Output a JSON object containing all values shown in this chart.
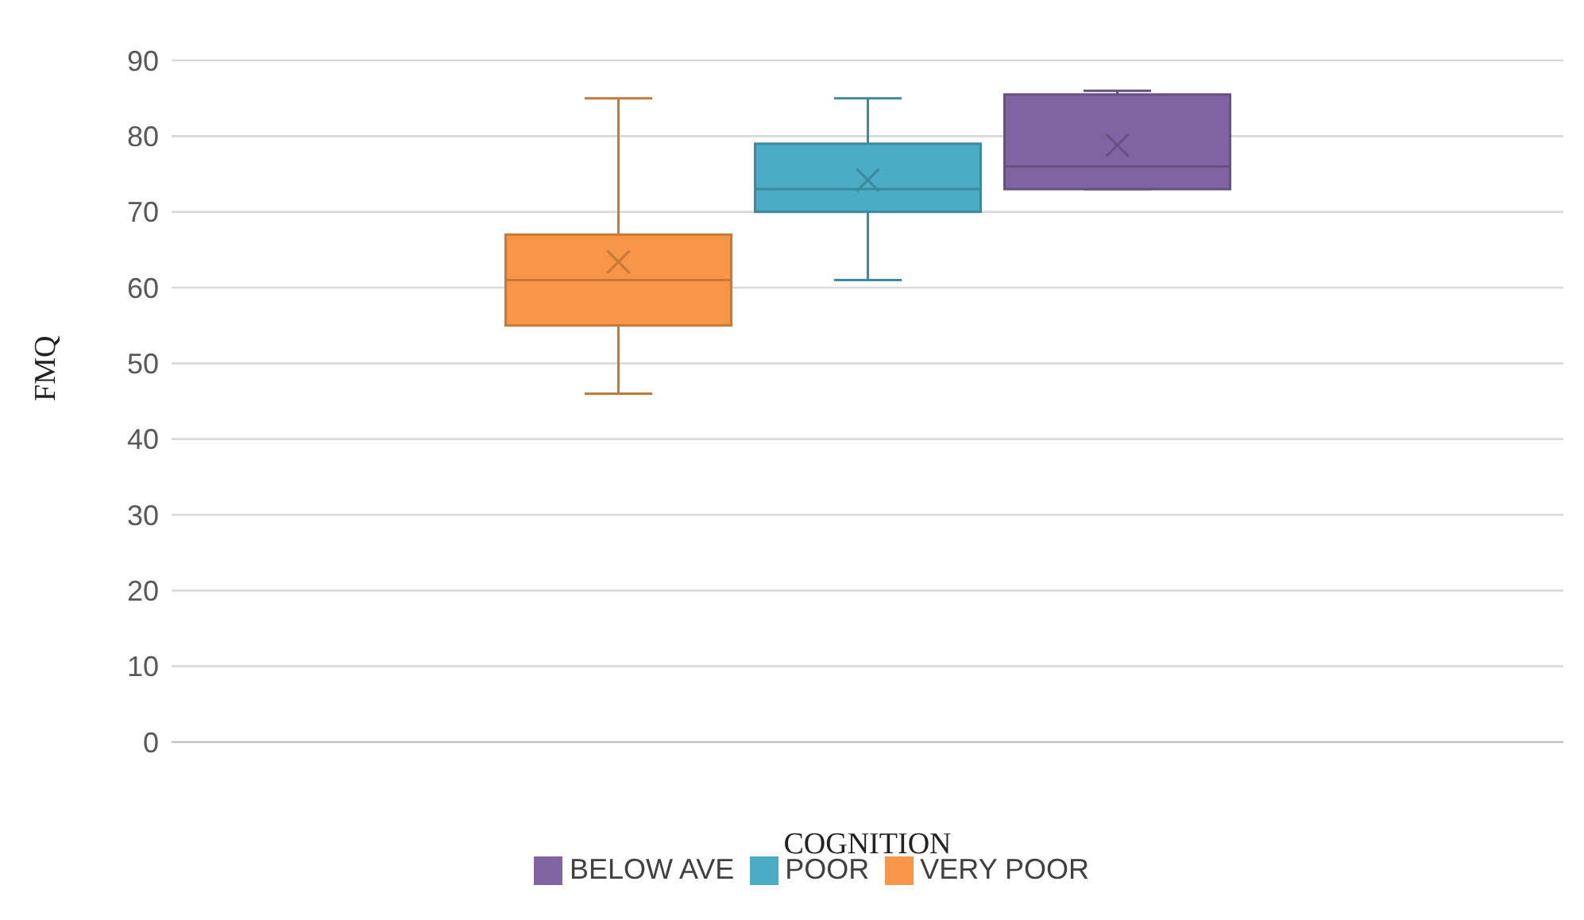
{
  "chart_data": {
    "type": "box",
    "xlabel": "COGNITION",
    "ylabel": "FMQ",
    "categories": [
      null
    ],
    "series": [
      {
        "name": "VERY POOR",
        "color": "#f79646",
        "boxes": [
          {
            "low": 46,
            "q1": 55,
            "median": 61,
            "q3": 67,
            "high": 85,
            "mean": 63.4
          }
        ]
      },
      {
        "name": "POOR",
        "color": "#4bacc6",
        "boxes": [
          {
            "low": 61,
            "q1": 70,
            "median": 73,
            "q3": 79,
            "high": 85,
            "mean": 74.2
          }
        ]
      },
      {
        "name": "BELOW AVE",
        "color": "#8064a2",
        "boxes": [
          {
            "low": 73,
            "q1": 73,
            "median": 76,
            "q3": 85.5,
            "high": 86,
            "mean": 78.8
          }
        ]
      }
    ],
    "ylim": [
      0,
      90
    ],
    "yticks": [
      0,
      10,
      20,
      30,
      40,
      50,
      60,
      70,
      80,
      90
    ],
    "grid": "y",
    "legend": "bottom"
  }
}
